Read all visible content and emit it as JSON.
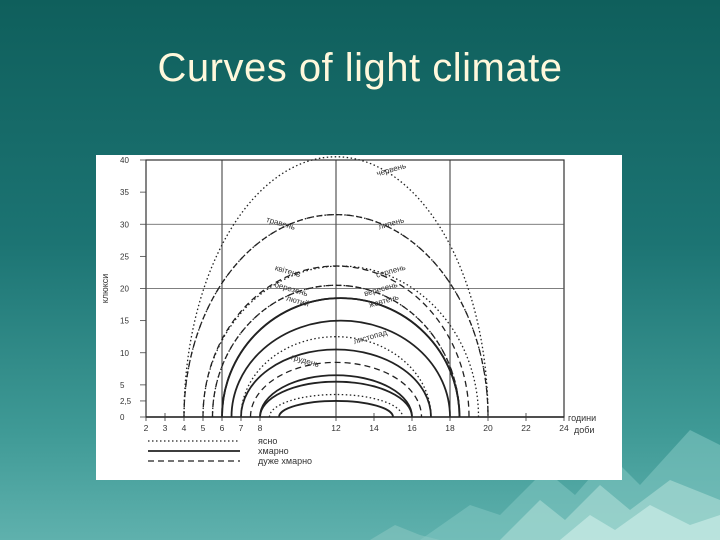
{
  "slide": {
    "title": "Curves of light climate"
  },
  "chart_data": {
    "type": "line",
    "ylabel": "клюкси",
    "xlabel": "години доби",
    "y_ticks": [
      "0",
      "2,5",
      "5",
      "10",
      "15",
      "20",
      "25",
      "30",
      "35",
      "40"
    ],
    "ylim": [
      0,
      40
    ],
    "x_ticks": [
      "2",
      "3",
      "4",
      "5",
      "6",
      "7",
      "8",
      "12",
      "14",
      "16",
      "18",
      "20",
      "22",
      "24"
    ],
    "xlim": [
      2,
      24
    ],
    "grid": true,
    "series": [
      {
        "name": "червень",
        "style": "dotted",
        "start": 4,
        "end": 20,
        "peak": 40.5
      },
      {
        "name": "травень",
        "style": "dashed",
        "start": 4,
        "end": 20,
        "peak": 31.5
      },
      {
        "name": "липень",
        "style": "dotted",
        "start": 4,
        "end": 20,
        "peak": 31.5
      },
      {
        "name": "квітень",
        "style": "dashed",
        "start": 5,
        "end": 19,
        "peak": 23.5
      },
      {
        "name": "серпень",
        "style": "dotted",
        "start": 5,
        "end": 19.5,
        "peak": 23.5
      },
      {
        "name": "березень",
        "style": "dashed",
        "start": 5.5,
        "end": 18.5,
        "peak": 20.5
      },
      {
        "name": "вересень",
        "style": "dotted",
        "start": 5.5,
        "end": 18.5,
        "peak": 20.5
      },
      {
        "name": "лютий",
        "style": "solid",
        "start": 6,
        "end": 18.5,
        "peak": 18.5
      },
      {
        "name": "жовтень",
        "style": "solid",
        "start": 6,
        "end": 18.5,
        "peak": 18.5
      },
      {
        "name": "",
        "style": "solid",
        "start": 6.5,
        "end": 18,
        "peak": 15
      },
      {
        "name": "листопад",
        "style": "dotted",
        "start": 7,
        "end": 17,
        "peak": 12.5
      },
      {
        "name": "грудень",
        "style": "dashed",
        "start": 7.5,
        "end": 16.5,
        "peak": 8.5
      },
      {
        "name": "",
        "style": "solid",
        "start": 7,
        "end": 17,
        "peak": 10.5
      },
      {
        "name": "",
        "style": "solid",
        "start": 8,
        "end": 16,
        "peak": 6.5
      },
      {
        "name": "",
        "style": "solid",
        "start": 8,
        "end": 16,
        "peak": 5.5
      },
      {
        "name": "",
        "style": "dotted",
        "start": 8.5,
        "end": 15.5,
        "peak": 3.5
      },
      {
        "name": "",
        "style": "solid",
        "start": 9,
        "end": 15,
        "peak": 2.5
      }
    ],
    "legend": {
      "position": "bottom-left",
      "entries": [
        {
          "style": "dotted",
          "label": "ясно"
        },
        {
          "style": "solid",
          "label": "хмарно"
        },
        {
          "style": "dashed",
          "label": "дуже хмарно"
        }
      ]
    }
  }
}
